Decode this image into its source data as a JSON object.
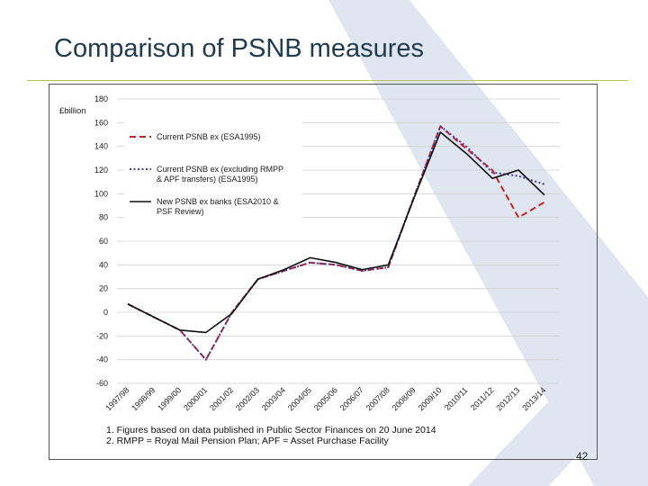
{
  "slide": {
    "title": "Comparison of PSNB measures",
    "page_number": "42",
    "notes": [
      "1. Figures based on data published in Public Sector Finances on 20 June 2014",
      "2. RMPP = Royal Mail Pension Plan; APF = Asset Purchase Facility"
    ]
  },
  "colors": {
    "title": "#1f3b4d",
    "rule": "#b8c060",
    "chevron": "#dfe6ef",
    "series_red": "#c0272d",
    "series_purple": "#4a3a9a",
    "series_black": "#111111"
  },
  "chart_data": {
    "type": "line",
    "ylabel": "£billion",
    "ylim": [
      -60,
      180
    ],
    "yticks": [
      180,
      160,
      140,
      120,
      100,
      80,
      60,
      40,
      20,
      0,
      -20,
      -40,
      -60
    ],
    "categories": [
      "1997/98",
      "1998/99",
      "1999/00",
      "2000/01",
      "2001/02",
      "2002/03",
      "2003/04",
      "2004/05",
      "2005/06",
      "2006/07",
      "2007/08",
      "2008/09",
      "2009/10",
      "2010/11",
      "2011/12",
      "2012/13",
      "2013/14"
    ],
    "legend_position": "top-left",
    "grid": true,
    "series": [
      {
        "name": "Current PSNB ex (ESA1995)",
        "style": "dashed",
        "color": "#c0272d",
        "values": [
          7,
          -4,
          -15,
          -40,
          0,
          28,
          35,
          42,
          40,
          35,
          38,
          98,
          157,
          138,
          120,
          80,
          93
        ]
      },
      {
        "name": "Current PSNB ex (excluding RMPP & APF transfers) (ESA1995)",
        "style": "dotted",
        "color": "#4a3a9a",
        "values": [
          7,
          -4,
          -15,
          -40,
          0,
          28,
          35,
          42,
          40,
          35,
          38,
          98,
          157,
          140,
          118,
          115,
          108
        ]
      },
      {
        "name": "New PSNB ex banks (ESA2010 & PSF Review)",
        "style": "solid",
        "color": "#111111",
        "values": [
          7,
          -4,
          -15,
          -17,
          -1,
          28,
          36,
          46,
          42,
          36,
          40,
          97,
          152,
          134,
          113,
          120,
          99
        ]
      }
    ]
  }
}
